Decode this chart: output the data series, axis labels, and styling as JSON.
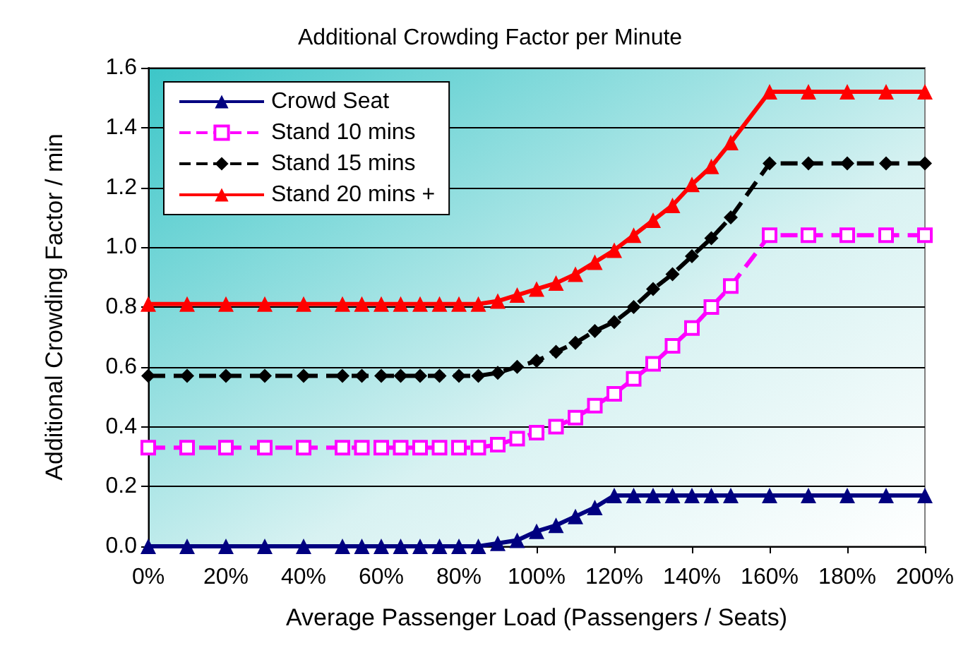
{
  "chart_data": {
    "type": "line",
    "title": "Additional Crowding Factor per Minute",
    "xlabel": "Average Passenger Load (Passengers / Seats)",
    "ylabel": "Additional Crowding Factor / min",
    "x": [
      0,
      10,
      20,
      30,
      40,
      50,
      55,
      60,
      65,
      70,
      75,
      80,
      85,
      90,
      95,
      100,
      105,
      110,
      115,
      120,
      125,
      130,
      135,
      140,
      145,
      150,
      160,
      170,
      180,
      190,
      200
    ],
    "series": [
      {
        "name": "Crowd Seat",
        "color": "#000080",
        "marker": "triangle",
        "line_style": "solid",
        "values": [
          0,
          0,
          0,
          0,
          0,
          0,
          0,
          0,
          0,
          0,
          0,
          0,
          0,
          0.01,
          0.02,
          0.05,
          0.07,
          0.1,
          0.13,
          0.17,
          0.17,
          0.17,
          0.17,
          0.17,
          0.17,
          0.17,
          0.17,
          0.17,
          0.17,
          0.17,
          0.17
        ]
      },
      {
        "name": "Stand 10 mins",
        "color": "#ff00ff",
        "marker": "square",
        "line_style": "dashed",
        "values": [
          0.33,
          0.33,
          0.33,
          0.33,
          0.33,
          0.33,
          0.33,
          0.33,
          0.33,
          0.33,
          0.33,
          0.33,
          0.33,
          0.34,
          0.36,
          0.38,
          0.4,
          0.43,
          0.47,
          0.51,
          0.56,
          0.61,
          0.67,
          0.73,
          0.8,
          0.87,
          1.04,
          1.04,
          1.04,
          1.04,
          1.04
        ]
      },
      {
        "name": "Stand 15 mins",
        "color": "#000000",
        "marker": "diamond",
        "line_style": "dashed",
        "values": [
          0.57,
          0.57,
          0.57,
          0.57,
          0.57,
          0.57,
          0.57,
          0.57,
          0.57,
          0.57,
          0.57,
          0.57,
          0.57,
          0.58,
          0.6,
          0.62,
          0.65,
          0.68,
          0.72,
          0.75,
          0.8,
          0.86,
          0.91,
          0.97,
          1.03,
          1.1,
          1.28,
          1.28,
          1.28,
          1.28,
          1.28
        ]
      },
      {
        "name": "Stand 20 mins +",
        "color": "#ff0000",
        "marker": "triangle",
        "line_style": "solid",
        "values": [
          0.81,
          0.81,
          0.81,
          0.81,
          0.81,
          0.81,
          0.81,
          0.81,
          0.81,
          0.81,
          0.81,
          0.81,
          0.81,
          0.82,
          0.84,
          0.86,
          0.88,
          0.91,
          0.95,
          0.99,
          1.04,
          1.09,
          1.14,
          1.21,
          1.27,
          1.35,
          1.52,
          1.52,
          1.52,
          1.52,
          1.52
        ]
      }
    ],
    "xlim": [
      0,
      200
    ],
    "xticks": [
      {
        "value": 0,
        "label": "0%"
      },
      {
        "value": 20,
        "label": "20%"
      },
      {
        "value": 40,
        "label": "40%"
      },
      {
        "value": 60,
        "label": "60%"
      },
      {
        "value": 80,
        "label": "80%"
      },
      {
        "value": 100,
        "label": "100%"
      },
      {
        "value": 120,
        "label": "120%"
      },
      {
        "value": 140,
        "label": "140%"
      },
      {
        "value": 160,
        "label": "160%"
      },
      {
        "value": 180,
        "label": "180%"
      },
      {
        "value": 200,
        "label": "200%"
      }
    ],
    "ylim": [
      0,
      1.6
    ],
    "yticks": [
      {
        "value": 0,
        "label": "0.0"
      },
      {
        "value": 0.2,
        "label": "0.2"
      },
      {
        "value": 0.4,
        "label": "0.4"
      },
      {
        "value": 0.6,
        "label": "0.6"
      },
      {
        "value": 0.8,
        "label": "0.8"
      },
      {
        "value": 1,
        "label": "1.0"
      },
      {
        "value": 1.2,
        "label": "1.2"
      },
      {
        "value": 1.4,
        "label": "1.4"
      },
      {
        "value": 1.6,
        "label": "1.6"
      }
    ],
    "grid": "y",
    "legend": "top left"
  }
}
